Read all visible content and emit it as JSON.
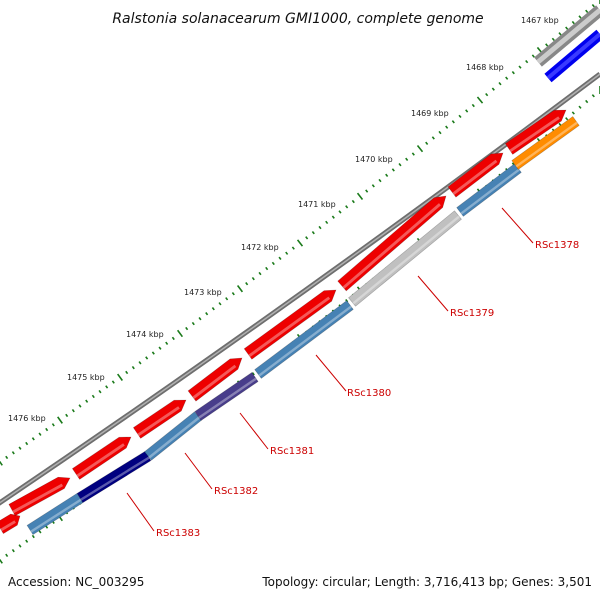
{
  "title": "Ralstonia solanacearum GMI1000, complete genome",
  "footer": {
    "accession": "Accession: NC_003295",
    "summary": "Topology: circular; Length: 3,716,413 bp; Genes: 3,501"
  },
  "ruler": [
    "1467 kbp",
    "1468 kbp",
    "1469 kbp",
    "1470 kbp",
    "1471 kbp",
    "1472 kbp",
    "1473 kbp",
    "1474 kbp",
    "1475 kbp",
    "1476 kbp"
  ],
  "genes": [
    "RSc1378",
    "RSc1379",
    "RSc1380",
    "RSc1381",
    "RSc1382",
    "RSc1383"
  ],
  "colors": {
    "cds_red": "#ee0000",
    "steel_blue": "#4682b4",
    "light_gray": "#c0c0c0",
    "blue": "#0000ee",
    "orange": "#ff8c00",
    "slate": "#483d8b",
    "navy": "#000080",
    "backbone": "#777777",
    "tick_green": "#1a7a1a",
    "label_red": "#cc0000"
  }
}
